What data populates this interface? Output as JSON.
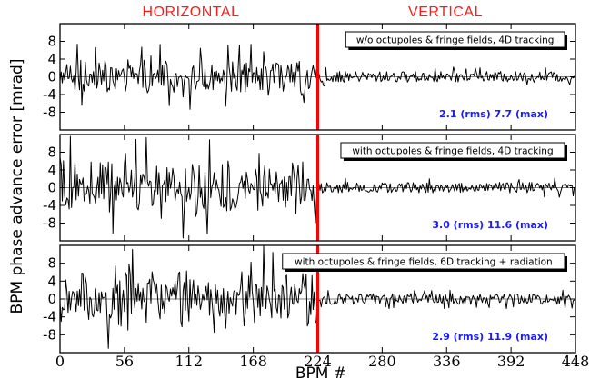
{
  "chart_data": {
    "type": "line",
    "plane_labels": {
      "left": "HORIZONTAL",
      "right": "VERTICAL"
    },
    "xlabel": "BPM #",
    "ylabel": "BPM phase advance error  [mrad]",
    "xlim": [
      0,
      448
    ],
    "x_ticks": [
      0,
      56,
      112,
      168,
      224,
      280,
      336,
      392,
      448
    ],
    "divider_x": 224,
    "divider_color": "#ff0000",
    "trace_color": "#000000",
    "stats_color": "#1a1aff",
    "panels": [
      {
        "legend": "w/o octupoles & fringe fields, 4D tracking",
        "stats": "2.1 (rms)  7.7 (max)",
        "ylim": [
          -12,
          12
        ],
        "y_ticks": [
          8,
          4,
          0,
          -4,
          -8
        ],
        "horizontal_amplitude_mrad": 7.7,
        "vertical_amplitude_mrad": 2.2
      },
      {
        "legend": "with octupoles & fringe fields, 4D tracking",
        "stats": "3.0 (rms)  11.6 (max)",
        "ylim": [
          -12,
          12
        ],
        "y_ticks": [
          8,
          4,
          0,
          -4,
          -8
        ],
        "horizontal_amplitude_mrad": 11.6,
        "vertical_amplitude_mrad": 2.2
      },
      {
        "legend": "with octupoles & fringe fields, 6D tracking + radiation",
        "stats": "2.9 (rms)  11.9 (max)",
        "ylim": [
          -12,
          12
        ],
        "y_ticks": [
          8,
          4,
          0,
          -4,
          -8
        ],
        "horizontal_amplitude_mrad": 11.9,
        "vertical_amplitude_mrad": 2.2
      }
    ]
  }
}
